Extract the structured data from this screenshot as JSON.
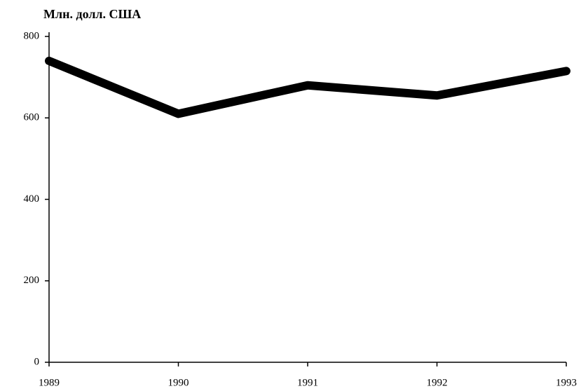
{
  "chart_data": {
    "type": "line",
    "title": "Млн. долл. США",
    "x": [
      1989,
      1990,
      1991,
      1992,
      1993
    ],
    "series": [
      {
        "color": "#000000",
        "values": [
          740,
          610,
          680,
          655,
          715
        ]
      }
    ],
    "xlim": [
      1989,
      1993
    ],
    "xticks": [
      1989,
      1990,
      1991,
      1992,
      1993
    ],
    "ylim": [
      0,
      800
    ],
    "yticks": [
      0,
      200,
      400,
      600,
      800
    ]
  }
}
